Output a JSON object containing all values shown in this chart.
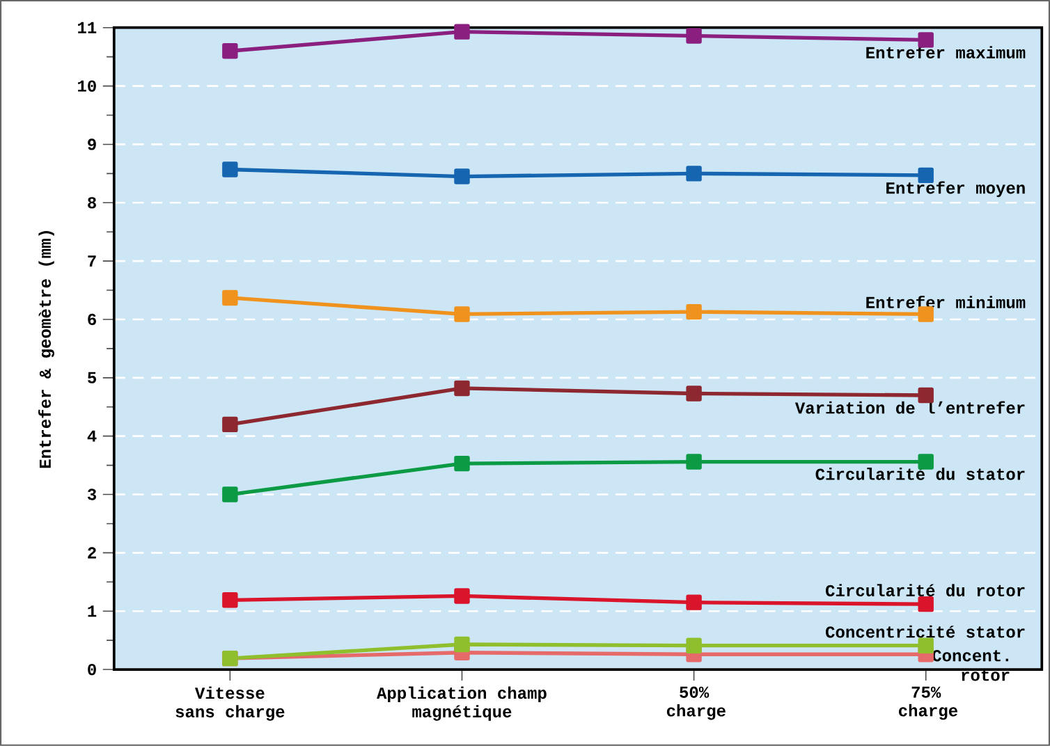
{
  "chart_data": {
    "type": "line",
    "ylabel": "Entrefer & geomètre (mm)",
    "categories": [
      "Vitesse sans charge",
      "Application champ magnétique",
      "50% charge",
      "75% charge"
    ],
    "series": [
      {
        "name": "Entrefer maximum",
        "color": "#8b1f7f",
        "values": [
          10.6,
          10.93,
          10.86,
          10.79
        ]
      },
      {
        "name": "Entrefer moyen",
        "color": "#1565b0",
        "values": [
          8.57,
          8.45,
          8.5,
          8.47
        ]
      },
      {
        "name": "Entrefer minimum",
        "color": "#f0921e",
        "values": [
          6.37,
          6.09,
          6.13,
          6.09
        ]
      },
      {
        "name": "Variation de l’entrefer",
        "color": "#8e2830",
        "values": [
          4.2,
          4.82,
          4.73,
          4.7
        ]
      },
      {
        "name": "Circularité du stator",
        "color": "#0c9a44",
        "values": [
          3.0,
          3.53,
          3.56,
          3.56
        ]
      },
      {
        "name": "Circularité du rotor",
        "color": "#d9142b",
        "values": [
          1.19,
          1.26,
          1.15,
          1.12
        ]
      },
      {
        "name": "Concentricité stator",
        "color": "#8fbf2d",
        "values": [
          0.19,
          0.43,
          0.41,
          0.41
        ]
      },
      {
        "name": "Concent. rotor",
        "color": "#e66a6a",
        "values": [
          0.19,
          0.29,
          0.26,
          0.26
        ]
      }
    ],
    "ylim": [
      0,
      11
    ],
    "yticks": [
      0,
      1,
      2,
      3,
      4,
      5,
      6,
      7,
      8,
      9,
      10,
      11
    ],
    "grid": "y",
    "legend": false,
    "marker": "square",
    "line_style": "solid"
  }
}
